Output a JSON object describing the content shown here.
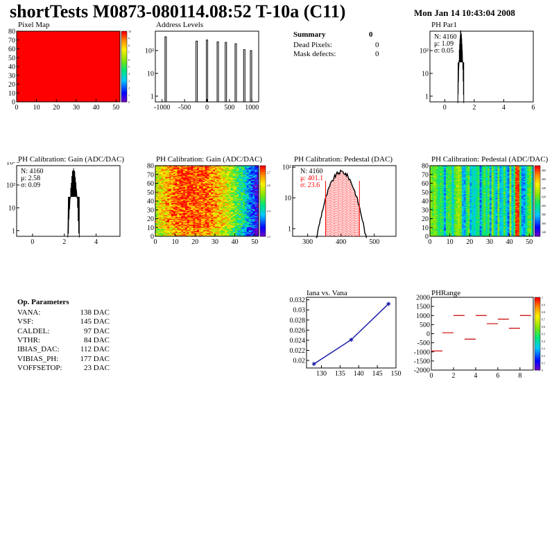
{
  "header": {
    "title": "shortTests M0873-080114.08:52 T-10a (C11)",
    "date": "Mon Jan 14 10:43:04 2008"
  },
  "summary": {
    "title": "Summary",
    "value": "0",
    "rows": [
      {
        "label": "Dead Pixels:",
        "value": "0"
      },
      {
        "label": "Mask defects:",
        "value": "0"
      }
    ]
  },
  "op_params": {
    "title": "Op. Parameters",
    "rows": [
      {
        "label": "VANA:",
        "value": "138 DAC"
      },
      {
        "label": "VSF:",
        "value": "145 DAC"
      },
      {
        "label": "CALDEL:",
        "value": "97 DAC"
      },
      {
        "label": "VTHR:",
        "value": "84 DAC"
      },
      {
        "label": "IBIAS_DAC:",
        "value": "112 DAC"
      },
      {
        "label": "VIBIAS_PH:",
        "value": "177 DAC"
      },
      {
        "label": "VOFFSETOP:",
        "value": "23 DAC"
      }
    ]
  },
  "colors": {
    "line": "#000000",
    "red": "#ff0000",
    "navy": "#1a1aa6"
  },
  "chart_data": [
    {
      "id": "pixel-map",
      "type": "heatmap",
      "title": "Pixel Map",
      "xticks": [
        "0",
        "10",
        "20",
        "30",
        "40",
        "50"
      ],
      "yticks": [
        "0",
        "10",
        "20",
        "30",
        "40",
        "50",
        "60",
        "70",
        "80"
      ],
      "xlim": [
        0,
        52
      ],
      "ylim": [
        0,
        80
      ],
      "zticks": [
        "0",
        "1",
        "2",
        "3",
        "4",
        "5",
        "6",
        "7",
        "8",
        "9",
        "10"
      ],
      "fill_color": "#ff0000",
      "fill_value": 10
    },
    {
      "id": "address-levels",
      "type": "bar",
      "title": "Address Levels",
      "xticks": [
        "-1000",
        "-500",
        "0",
        "500",
        "1000"
      ],
      "xlim": [
        -1150,
        1150
      ],
      "ylog": true,
      "peaks": [
        {
          "x": -920,
          "count": 400
        },
        {
          "x": -230,
          "count": 260
        },
        {
          "x": 0,
          "count": 290
        },
        {
          "x": 240,
          "count": 240
        },
        {
          "x": 420,
          "count": 230
        },
        {
          "x": 640,
          "count": 200
        },
        {
          "x": 830,
          "count": 110
        },
        {
          "x": 980,
          "count": 100
        }
      ]
    },
    {
      "id": "ph-par1",
      "type": "bar",
      "title": "PH Par1",
      "xticks": [
        "0",
        "2",
        "4",
        "6"
      ],
      "xlim": [
        -1,
        6
      ],
      "ylog": true,
      "stats": [
        "N: 4160",
        "μ: 1.09",
        "σ: 0.05"
      ],
      "mean": 1.09,
      "sigma": 0.05,
      "peak": 700
    },
    {
      "id": "ph-gain-hist",
      "type": "bar",
      "title": "PH Calibration: Gain (ADC/DAC)",
      "xticks": [
        "0",
        "2",
        "4"
      ],
      "xlim": [
        -1,
        5.5
      ],
      "ylog": true,
      "yticks": [
        "1",
        "10",
        "10²",
        "10³"
      ],
      "stats": [
        "N: 4160",
        "μ: 2.58",
        "σ: 0.09"
      ],
      "mean": 2.58,
      "sigma": 0.09,
      "peak": 500
    },
    {
      "id": "ph-gain-map",
      "type": "heatmap",
      "title": "PH Calibration: Gain (ADC/DAC)",
      "xticks": [
        "0",
        "10",
        "20",
        "30",
        "40",
        "50"
      ],
      "yticks": [
        "0",
        "10",
        "20",
        "30",
        "40",
        "50",
        "60",
        "70",
        "80"
      ],
      "xlim": [
        0,
        52
      ],
      "ylim": [
        0,
        80
      ],
      "zticks": [
        "2.2",
        "2.4",
        "2.6",
        "2.7"
      ],
      "zrange": [
        2.2,
        2.75
      ]
    },
    {
      "id": "ph-pedestal-hist",
      "type": "bar",
      "title": "PH Calibration: Pedestal (DAC)",
      "xticks": [
        "300",
        "400",
        "500"
      ],
      "xlim": [
        255,
        565
      ],
      "ylog": true,
      "stats": [
        "N: 4160",
        "μ: 401.1",
        "σ: 23.6"
      ],
      "mean": 401.1,
      "sigma": 23.6,
      "peak": 70
    },
    {
      "id": "ph-pedestal-map",
      "type": "heatmap",
      "title": "PH Calibration: Pedestal (ADC/DAC)",
      "xticks": [
        "0",
        "10",
        "20",
        "30",
        "40",
        "50"
      ],
      "yticks": [
        "0",
        "10",
        "20",
        "30",
        "40",
        "50",
        "60",
        "70",
        "80"
      ],
      "xlim": [
        0,
        52
      ],
      "ylim": [
        0,
        80
      ],
      "zticks": [
        "340",
        "360",
        "380",
        "400",
        "420",
        "440",
        "460",
        "480"
      ],
      "zrange": [
        330,
        490
      ]
    },
    {
      "id": "iana-vana",
      "type": "line",
      "title": "Iana vs. Vana",
      "xticks": [
        "130",
        "135",
        "140",
        "145",
        "150"
      ],
      "yticks": [
        "0.02",
        "0.022",
        "0.024",
        "0.026",
        "0.028",
        "0.03",
        "0.032"
      ],
      "xlim": [
        126,
        150
      ],
      "ylim": [
        0.0185,
        0.0325
      ],
      "x": [
        128,
        138,
        148
      ],
      "y": [
        0.0193,
        0.0241,
        0.0312
      ]
    },
    {
      "id": "ph-range",
      "type": "scatter",
      "title": "PHRange",
      "xticks": [
        "0",
        "2",
        "4",
        "6",
        "8"
      ],
      "yticks": [
        "-2000",
        "-1500",
        "-1000",
        "-500",
        "0",
        "500",
        "1000",
        "1500",
        "2000"
      ],
      "xlim": [
        0,
        9.2
      ],
      "ylim": [
        -2000,
        2000
      ],
      "zticks": [
        "0",
        "0.1",
        "0.2",
        "0.3",
        "0.4",
        "0.5",
        "0.6",
        "0.7",
        "0.8",
        "0.9",
        "1"
      ],
      "x": [
        0,
        1,
        2,
        3,
        4,
        5,
        6,
        7,
        8
      ],
      "y": [
        -950,
        50,
        1000,
        -300,
        1000,
        550,
        800,
        300,
        1000
      ]
    }
  ]
}
